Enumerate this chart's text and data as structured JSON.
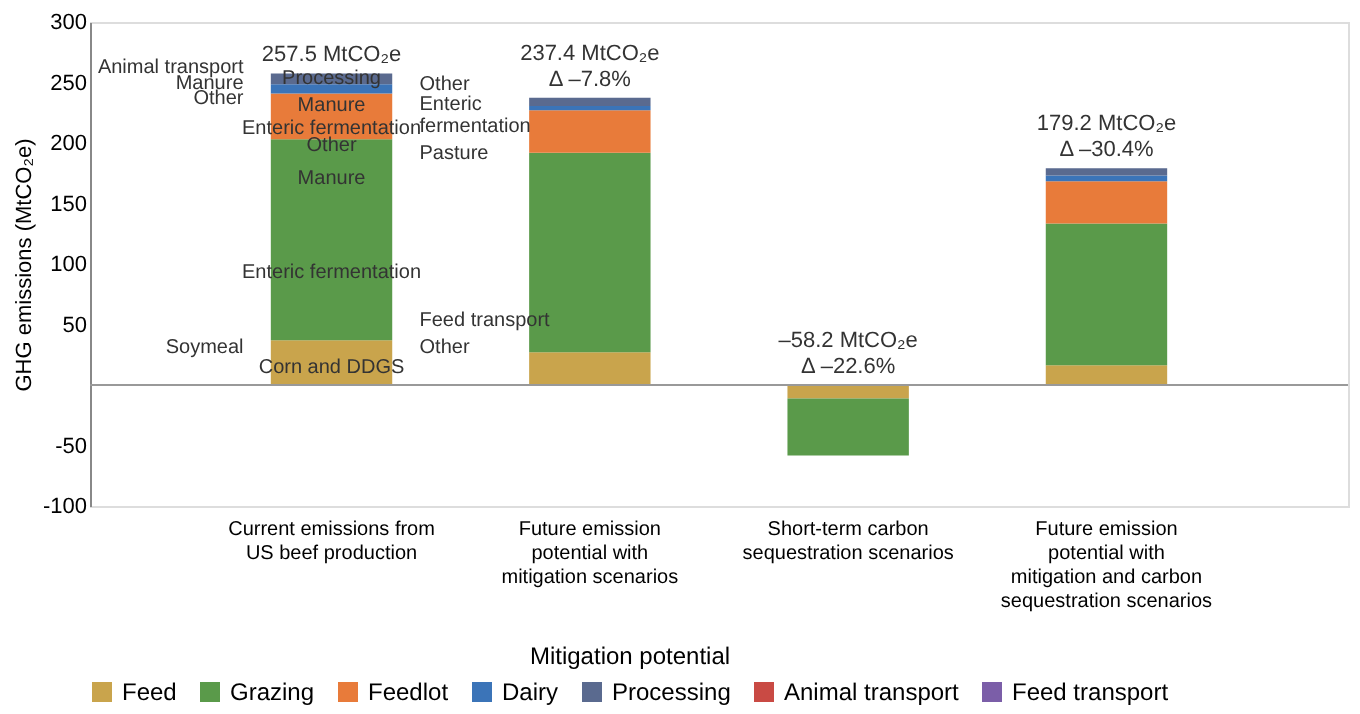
{
  "chart_data": {
    "type": "bar",
    "stacked": true,
    "ylabel": "GHG emissions (MtCO₂e)",
    "legend_title": "Mitigation potential",
    "legend": "bottom",
    "grid": false,
    "categories": [
      "Current emissions from US beef production",
      "Future emission potential with mitigation scenarios",
      "Short-term carbon sequestration scenarios",
      "Future emission potential with mitigation and carbon sequestration scenarios"
    ],
    "series": [
      {
        "name": "Feed",
        "color": "#c9a44c",
        "values": [
          37,
          27,
          -11.2,
          16.4
        ]
      },
      {
        "name": "Grazing",
        "color": "#5a9a4a",
        "values": [
          166,
          165,
          -47,
          117
        ]
      },
      {
        "name": "Feedlot",
        "color": "#e87b3a",
        "values": [
          38,
          35,
          null,
          35
        ]
      },
      {
        "name": "Dairy",
        "color": "#3b74b8",
        "values": [
          7.5,
          3.5,
          null,
          4.8
        ]
      },
      {
        "name": "Processing",
        "color": "#5a6a8f",
        "values": [
          9,
          6.9,
          null,
          6
        ]
      },
      {
        "name": "Animal transport",
        "color": "#c94a44",
        "values": [
          null,
          null,
          null,
          null
        ]
      },
      {
        "name": "Feed transport",
        "color": "#7b5ea8",
        "values": [
          null,
          null,
          null,
          null
        ]
      }
    ],
    "ylim": [
      -100,
      300
    ],
    "yticks": [
      -100,
      -50,
      50,
      100,
      150,
      200,
      250,
      300
    ],
    "totals": [
      "257.5 MtCO₂e",
      "237.4 MtCO₂e\nΔ –7.8%",
      "–58.2 MtCO₂e\nΔ –22.6%",
      "179.2 MtCO₂e\nΔ –30.4%"
    ],
    "ref_lines": [
      {
        "axis": "y",
        "value": 0,
        "color": "#999999"
      }
    ],
    "annotations": [
      "Corn and DDGS",
      "Soymeal",
      "Other",
      "Feed transport",
      "Enteric fermentation",
      "Manure",
      "Pasture",
      "Other",
      "Enteric fermentation",
      "Manure",
      "Other",
      "Other",
      "Enteric fermentation",
      "Manure",
      "Processing",
      "Animal transport"
    ]
  }
}
